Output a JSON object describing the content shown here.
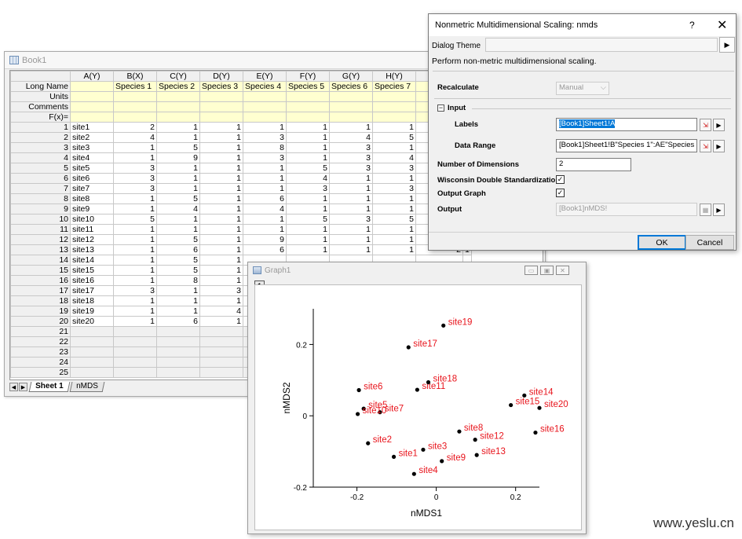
{
  "workbook": {
    "title": "Book1",
    "col_headers": [
      "A(Y)",
      "B(X)",
      "C(Y)",
      "D(Y)",
      "E(Y)",
      "F(Y)",
      "G(Y)",
      "H(Y)",
      "I("
    ],
    "meta_rows": [
      {
        "label": "Long Name",
        "cells": [
          "",
          "Species 1",
          "Species 2",
          "Species 3",
          "Species 4",
          "Species 5",
          "Species 6",
          "Species 7",
          ""
        ]
      },
      {
        "label": "Units",
        "cells": [
          "",
          "",
          "",
          "",
          "",
          "",
          "",
          "",
          ""
        ]
      },
      {
        "label": "Comments",
        "cells": [
          "",
          "",
          "",
          "",
          "",
          "",
          "",
          "",
          ""
        ]
      },
      {
        "label": "F(x)=",
        "cells": [
          "",
          "",
          "",
          "",
          "",
          "",
          "",
          "",
          ""
        ]
      }
    ],
    "rows": [
      {
        "n": "1",
        "cells": [
          "site1",
          "2",
          "1",
          "1",
          "1",
          "1",
          "1",
          "1",
          ""
        ]
      },
      {
        "n": "2",
        "cells": [
          "site2",
          "4",
          "1",
          "1",
          "3",
          "1",
          "4",
          "5",
          ""
        ]
      },
      {
        "n": "3",
        "cells": [
          "site3",
          "1",
          "5",
          "1",
          "8",
          "1",
          "3",
          "1",
          ""
        ]
      },
      {
        "n": "4",
        "cells": [
          "site4",
          "1",
          "9",
          "1",
          "3",
          "1",
          "3",
          "4",
          ""
        ]
      },
      {
        "n": "5",
        "cells": [
          "site5",
          "3",
          "1",
          "1",
          "1",
          "5",
          "3",
          "3",
          ""
        ]
      },
      {
        "n": "6",
        "cells": [
          "site6",
          "3",
          "1",
          "1",
          "1",
          "4",
          "1",
          "1",
          ""
        ]
      },
      {
        "n": "7",
        "cells": [
          "site7",
          "3",
          "1",
          "1",
          "1",
          "3",
          "1",
          "3",
          ""
        ]
      },
      {
        "n": "8",
        "cells": [
          "site8",
          "1",
          "5",
          "1",
          "6",
          "1",
          "1",
          "1",
          ""
        ]
      },
      {
        "n": "9",
        "cells": [
          "site9",
          "1",
          "4",
          "1",
          "4",
          "1",
          "1",
          "1",
          ""
        ]
      },
      {
        "n": "10",
        "cells": [
          "site10",
          "5",
          "1",
          "1",
          "1",
          "5",
          "3",
          "5",
          ""
        ]
      },
      {
        "n": "11",
        "cells": [
          "site11",
          "1",
          "1",
          "1",
          "1",
          "1",
          "1",
          "1",
          ""
        ]
      },
      {
        "n": "12",
        "cells": [
          "site12",
          "1",
          "5",
          "1",
          "9",
          "1",
          "1",
          "1",
          ""
        ]
      },
      {
        "n": "13",
        "cells": [
          "site13",
          "1",
          "6",
          "1",
          "6",
          "1",
          "1",
          "1",
          "2"
        ]
      },
      {
        "n": "14",
        "cells": [
          "site14",
          "1",
          "5",
          "1",
          "",
          "",
          "",
          "",
          ""
        ]
      },
      {
        "n": "15",
        "cells": [
          "site15",
          "1",
          "5",
          "1",
          "",
          "",
          "",
          "",
          ""
        ]
      },
      {
        "n": "16",
        "cells": [
          "site16",
          "1",
          "8",
          "1",
          "",
          "",
          "",
          "",
          ""
        ]
      },
      {
        "n": "17",
        "cells": [
          "site17",
          "3",
          "1",
          "3",
          "",
          "",
          "",
          "",
          ""
        ]
      },
      {
        "n": "18",
        "cells": [
          "site18",
          "1",
          "1",
          "1",
          "",
          "",
          "",
          "",
          ""
        ]
      },
      {
        "n": "19",
        "cells": [
          "site19",
          "1",
          "1",
          "4",
          "",
          "",
          "",
          "",
          ""
        ]
      },
      {
        "n": "20",
        "cells": [
          "site20",
          "1",
          "6",
          "1",
          "",
          "",
          "",
          "",
          ""
        ]
      }
    ],
    "extra_col_13": "1",
    "empty_rows": [
      "21",
      "22",
      "23",
      "24",
      "25"
    ],
    "tabs": [
      "Sheet 1",
      "nMDS"
    ]
  },
  "dialog": {
    "title": "Nonmetric Multidimensional Scaling: nmds",
    "help": "?",
    "close": "✕",
    "theme_label": "Dialog Theme",
    "description": "Perform non-metric multidimensional scaling.",
    "recalculate_label": "Recalculate",
    "recalculate_value": "Manual",
    "input_group": "Input",
    "labels_label": "Labels",
    "labels_value": "[Book1]Sheet1!A",
    "range_label": "Data Range",
    "range_value": "[Book1]Sheet1!B\"Species 1\":AE\"Species 30",
    "dims_label": "Number of Dimensions",
    "dims_value": "2",
    "wisconsin_label": "Wisconsin Double Standardization",
    "output_graph_label": "Output Graph",
    "output_label": "Output",
    "output_value": "[Book1]nMDS!",
    "ok": "OK",
    "cancel": "Cancel"
  },
  "graph": {
    "title": "Graph1",
    "layer": "1",
    "label_color": "#e8141c",
    "point_color": "#000000"
  },
  "chart_data": {
    "type": "scatter",
    "xlabel": "nMDS1",
    "ylabel": "nMDS2",
    "xlim": [
      -0.31,
      0.26
    ],
    "ylim": [
      -0.2,
      0.3
    ],
    "xticks": [
      -0.2,
      0,
      0.2
    ],
    "yticks": [
      -0.2,
      0,
      0.2
    ],
    "xtick_labels": [
      "-0.2",
      "0",
      "0.2"
    ],
    "ytick_labels": [
      "-0.2",
      "0",
      "0.2"
    ],
    "points": [
      {
        "label": "site1",
        "x": -0.107,
        "y": -0.115
      },
      {
        "label": "site2",
        "x": -0.172,
        "y": -0.077
      },
      {
        "label": "site3",
        "x": -0.033,
        "y": -0.095
      },
      {
        "label": "site4",
        "x": -0.056,
        "y": -0.163
      },
      {
        "label": "site5",
        "x": -0.183,
        "y": 0.02
      },
      {
        "label": "site6",
        "x": -0.195,
        "y": 0.072
      },
      {
        "label": "site7",
        "x": -0.142,
        "y": 0.01
      },
      {
        "label": "site8",
        "x": 0.058,
        "y": -0.044
      },
      {
        "label": "site9",
        "x": 0.014,
        "y": -0.127
      },
      {
        "label": "site10",
        "x": -0.198,
        "y": 0.005
      },
      {
        "label": "site11",
        "x": -0.048,
        "y": 0.073
      },
      {
        "label": "site12",
        "x": 0.098,
        "y": -0.067
      },
      {
        "label": "site13",
        "x": 0.102,
        "y": -0.11
      },
      {
        "label": "site14",
        "x": 0.222,
        "y": 0.057
      },
      {
        "label": "site15",
        "x": 0.188,
        "y": 0.03
      },
      {
        "label": "site16",
        "x": 0.25,
        "y": -0.047
      },
      {
        "label": "site17",
        "x": -0.07,
        "y": 0.192
      },
      {
        "label": "site18",
        "x": -0.02,
        "y": 0.094
      },
      {
        "label": "site19",
        "x": 0.018,
        "y": 0.253
      },
      {
        "label": "site20",
        "x": 0.26,
        "y": 0.022
      }
    ]
  },
  "watermark": "www.yeslu.cn"
}
